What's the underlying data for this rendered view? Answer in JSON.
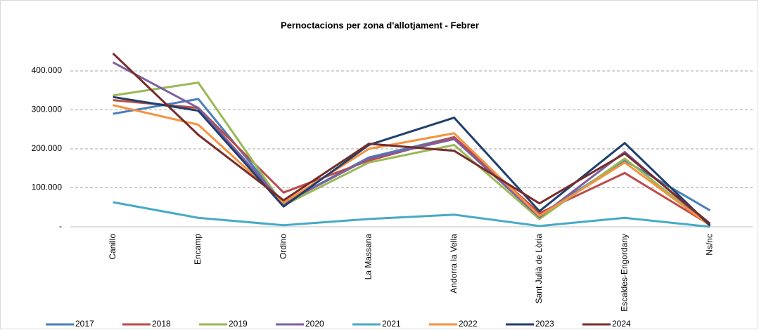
{
  "chart_data": {
    "type": "line",
    "title": "Pernoctacions per zona d'allotjament - Febrer",
    "categories": [
      "Canillo",
      "Encamp",
      "Ordino",
      "La Massana",
      "Andorra la Vella",
      "Sant Julià de Lòria",
      "Escaldes-Engordany",
      "Ns/nc"
    ],
    "ylim": [
      0,
      500000
    ],
    "yticks": [
      {
        "value": 0,
        "label": "-"
      },
      {
        "value": 100000,
        "label": "100.000"
      },
      {
        "value": 200000,
        "label": "200.000"
      },
      {
        "value": 300000,
        "label": "300.000"
      },
      {
        "value": 400000,
        "label": "400.000"
      }
    ],
    "grid": true,
    "legend": "bottom",
    "series": [
      {
        "name": "2017",
        "color": "#4a7ebb",
        "values": [
          290000,
          328000,
          60000,
          178000,
          230000,
          30000,
          170000,
          42000
        ]
      },
      {
        "name": "2018",
        "color": "#be4b48",
        "values": [
          325000,
          305000,
          88000,
          170000,
          230000,
          35000,
          138000,
          5000
        ]
      },
      {
        "name": "2019",
        "color": "#98b954",
        "values": [
          337000,
          370000,
          55000,
          165000,
          210000,
          20000,
          175000,
          3000
        ]
      },
      {
        "name": "2020",
        "color": "#7d60a0",
        "values": [
          422000,
          305000,
          60000,
          175000,
          225000,
          25000,
          192000,
          3000
        ]
      },
      {
        "name": "2021",
        "color": "#46aac5",
        "values": [
          63000,
          23000,
          4000,
          20000,
          31000,
          2000,
          23000,
          0
        ]
      },
      {
        "name": "2022",
        "color": "#f69240",
        "values": [
          312000,
          262000,
          62000,
          200000,
          240000,
          28000,
          165000,
          3000
        ]
      },
      {
        "name": "2023",
        "color": "#1f3f6b",
        "values": [
          333000,
          298000,
          52000,
          210000,
          280000,
          40000,
          215000,
          3000
        ]
      },
      {
        "name": "2024",
        "color": "#772c2a",
        "values": [
          445000,
          236000,
          68000,
          213000,
          195000,
          60000,
          188000,
          8000
        ]
      }
    ]
  }
}
